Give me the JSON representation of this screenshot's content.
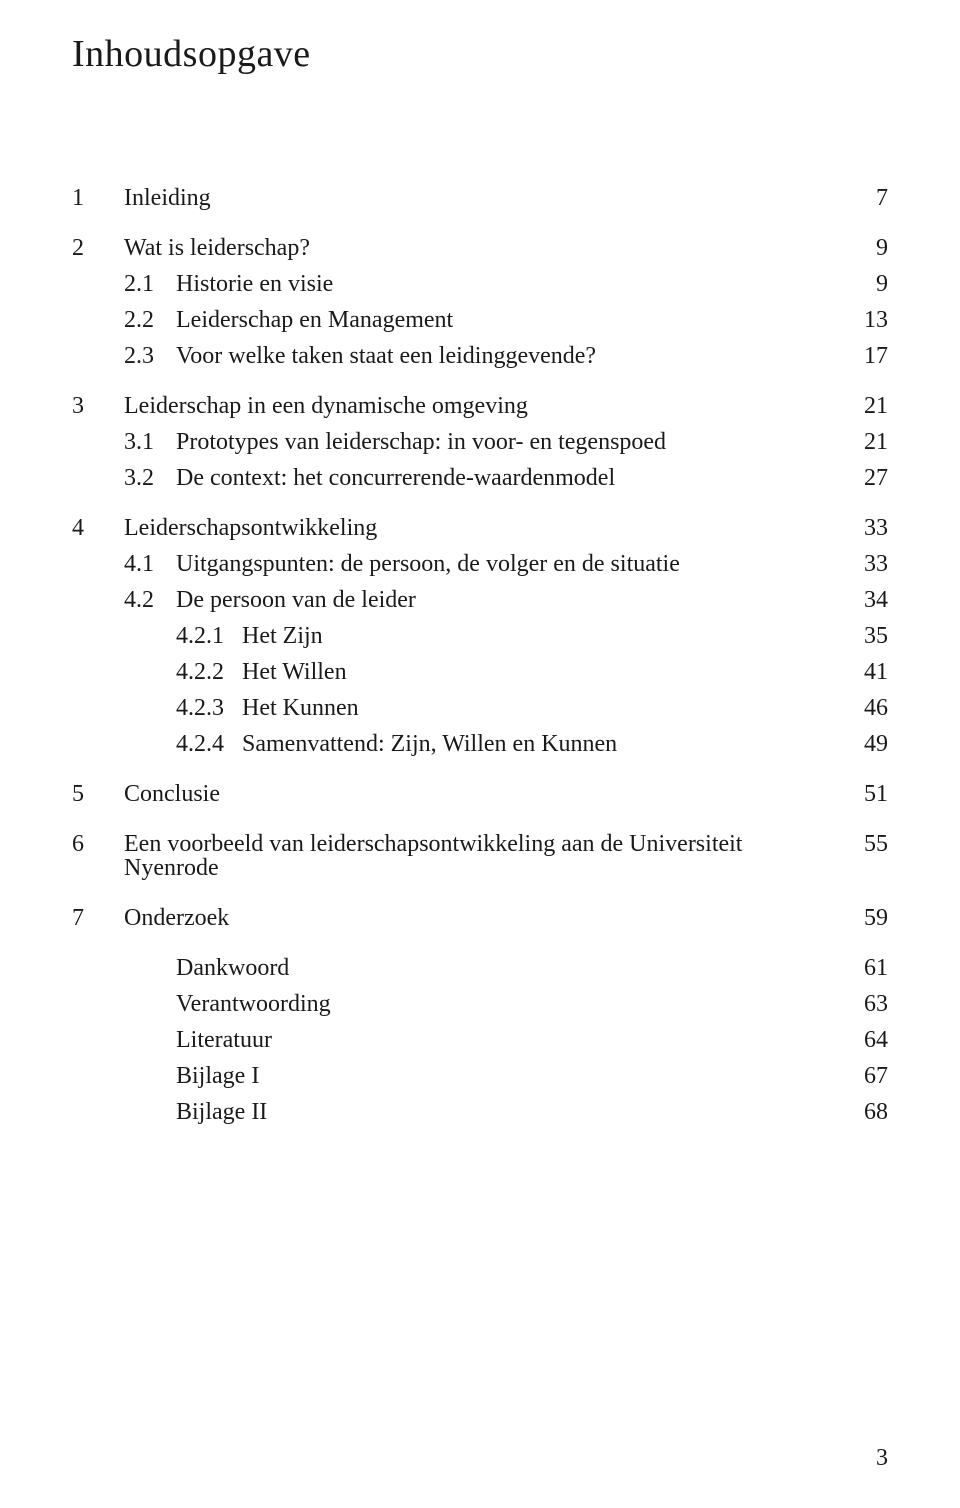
{
  "title": "Inhoudsopgave",
  "page_number": "3",
  "colors": {
    "text": "#1a1a1a",
    "background": "#ffffff"
  },
  "typography": {
    "title_fontsize_pt": 28,
    "body_fontsize_pt": 18,
    "font_family": "serif"
  },
  "toc": [
    {
      "block": [
        {
          "level": 1,
          "num": "1",
          "text": "Inleiding",
          "page": "7"
        }
      ]
    },
    {
      "block": [
        {
          "level": 1,
          "num": "2",
          "text": "Wat is leiderschap?",
          "page": "9"
        },
        {
          "level": 2,
          "num": "2.1",
          "text": "Historie en visie",
          "page": "9"
        },
        {
          "level": 2,
          "num": "2.2",
          "text": "Leiderschap en Management",
          "page": "13"
        },
        {
          "level": 2,
          "num": "2.3",
          "text": "Voor welke taken staat een leidinggevende?",
          "page": "17"
        }
      ]
    },
    {
      "block": [
        {
          "level": 1,
          "num": "3",
          "text": "Leiderschap in een dynamische omgeving",
          "page": "21"
        },
        {
          "level": 2,
          "num": "3.1",
          "text": "Prototypes van leiderschap: in voor- en tegenspoed",
          "page": "21"
        },
        {
          "level": 2,
          "num": "3.2",
          "text": "De context: het concurrerende-waardenmodel",
          "page": "27"
        }
      ]
    },
    {
      "block": [
        {
          "level": 1,
          "num": "4",
          "text": "Leiderschapsontwikkeling",
          "page": "33"
        },
        {
          "level": 2,
          "num": "4.1",
          "text": "Uitgangspunten: de persoon, de volger en de situatie",
          "page": "33"
        },
        {
          "level": 2,
          "num": "4.2",
          "text": "De persoon van de leider",
          "page": "34"
        },
        {
          "level": 3,
          "num": "4.2.1",
          "text": "Het Zijn",
          "page": "35"
        },
        {
          "level": 3,
          "num": "4.2.2",
          "text": "Het Willen",
          "page": "41"
        },
        {
          "level": 3,
          "num": "4.2.3",
          "text": "Het Kunnen",
          "page": "46"
        },
        {
          "level": 3,
          "num": "4.2.4",
          "text": "Samenvattend: Zijn, Willen en Kunnen",
          "page": "49"
        }
      ]
    },
    {
      "block": [
        {
          "level": 1,
          "num": "5",
          "text": "Conclusie",
          "page": "51"
        }
      ]
    },
    {
      "block": [
        {
          "level": 1,
          "num": "6",
          "text": "Een voorbeeld van leiderschapsontwikkeling aan de Universiteit Nyenrode",
          "page": "55"
        }
      ]
    },
    {
      "block": [
        {
          "level": 1,
          "num": "7",
          "text": "Onderzoek",
          "page": "59"
        }
      ]
    },
    {
      "block": [
        {
          "level": 2,
          "num": "",
          "text": "Dankwoord",
          "page": "61"
        },
        {
          "level": 2,
          "num": "",
          "text": "Verantwoording",
          "page": "63"
        },
        {
          "level": 2,
          "num": "",
          "text": "Literatuur",
          "page": "64"
        },
        {
          "level": 2,
          "num": "",
          "text": "Bijlage I",
          "page": "67"
        },
        {
          "level": 2,
          "num": "",
          "text": "Bijlage II",
          "page": "68"
        }
      ]
    }
  ]
}
